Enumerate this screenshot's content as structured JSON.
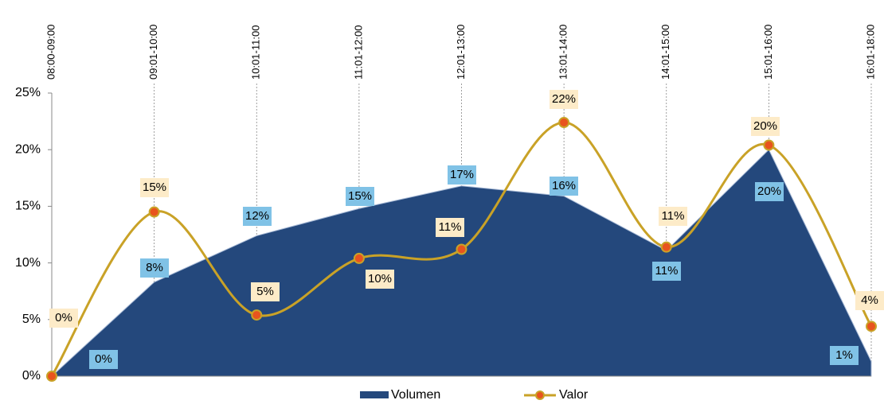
{
  "chart_data": {
    "type": "area-line",
    "categories": [
      "08:00-09:00",
      "09:01-10:00",
      "10:01-11:00",
      "11:01-12:00",
      "12:01-13:00",
      "13:01-14:00",
      "14:01-15:00",
      "15:01-16:00",
      "16:01-18:00"
    ],
    "series": [
      {
        "name": "Volumen",
        "type": "area",
        "color": "#24487c",
        "values": [
          0,
          8.3,
          12.4,
          14.8,
          16.8,
          15.9,
          11.1,
          20.0,
          1.3
        ],
        "value_labels": [
          "0%",
          "8%",
          "12%",
          "15%",
          "17%",
          "16%",
          "11%",
          "20%",
          "1%"
        ]
      },
      {
        "name": "Valor",
        "type": "line",
        "color": "#c9a227",
        "marker_color": "#e8541e",
        "values": [
          0,
          14.5,
          5.4,
          10.4,
          11.2,
          22.4,
          11.4,
          20.4,
          4.4
        ],
        "value_labels": [
          "0%",
          "15%",
          "5%",
          "10%",
          "11%",
          "22%",
          "11%",
          "20%",
          "4%"
        ]
      }
    ],
    "ylim": [
      0,
      25
    ],
    "yticks": [
      {
        "value": 0,
        "label": "0%"
      },
      {
        "value": 5,
        "label": "5%"
      },
      {
        "value": 10,
        "label": "10%"
      },
      {
        "value": 15,
        "label": "15%"
      },
      {
        "value": 20,
        "label": "20%"
      },
      {
        "value": 25,
        "label": "25%"
      }
    ],
    "legend": "bottom"
  }
}
